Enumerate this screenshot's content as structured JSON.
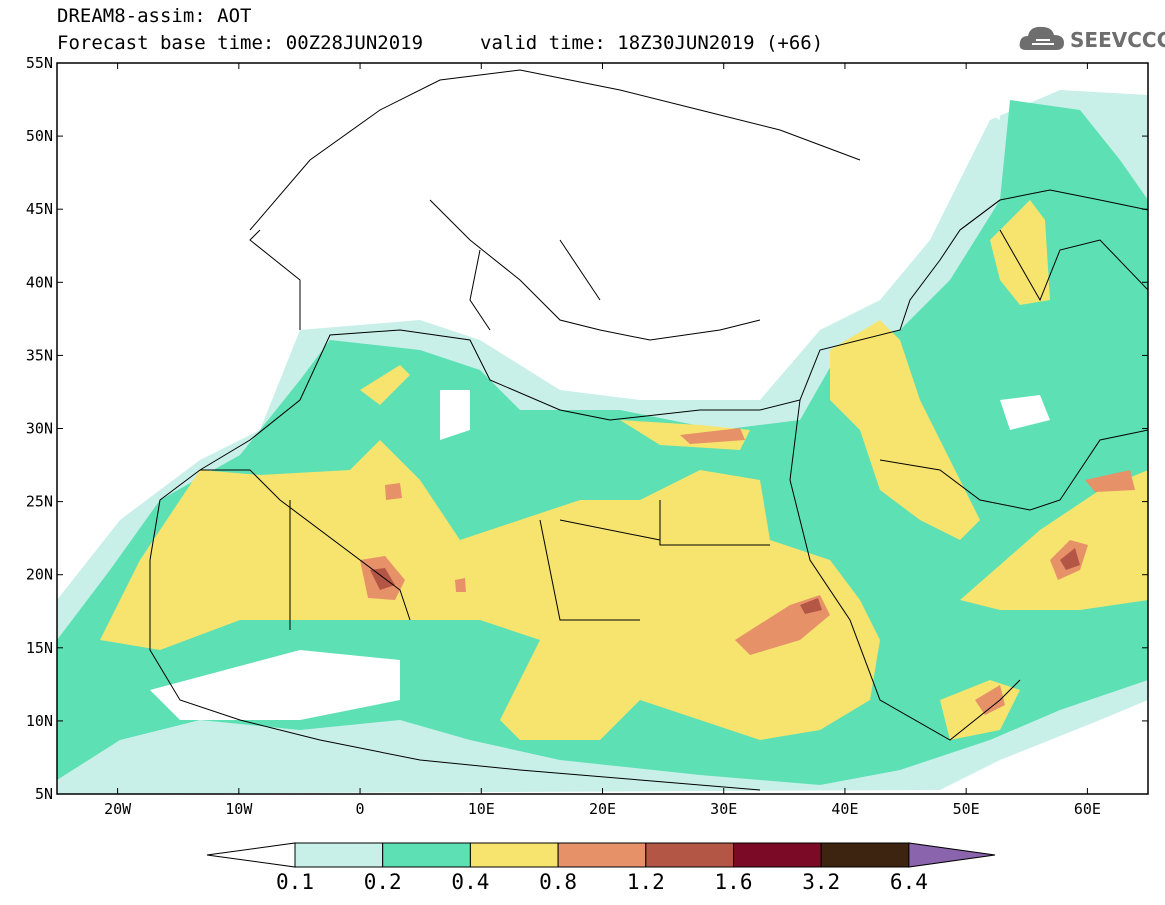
{
  "header": {
    "title": "DREAM8-assim: AOT",
    "base_time": "Forecast base time: 00Z28JUN2019",
    "valid_time": "valid time: 18Z30JUN2019 (+66)"
  },
  "logo": {
    "text": "SEEVCCC",
    "icon": "cloud-icon"
  },
  "axes": {
    "lat_labels": [
      "55N",
      "50N",
      "45N",
      "40N",
      "35N",
      "30N",
      "25N",
      "20N",
      "15N",
      "10N",
      "5N"
    ],
    "lon_labels": [
      "20W",
      "10W",
      "0",
      "10E",
      "20E",
      "30E",
      "40E",
      "50E",
      "60E"
    ]
  },
  "legend": {
    "labels": [
      "0.1",
      "0.2",
      "0.4",
      "0.8",
      "1.2",
      "1.6",
      "3.2",
      "6.4"
    ],
    "colors": [
      "#c8f0e8",
      "#5ce0b4",
      "#f6e46e",
      "#e69168",
      "#b45646",
      "#7b0a26",
      "#3c2410",
      "#8a64ac"
    ]
  },
  "palette": {
    "ocean": "#ffffff",
    "land_outline": "#000000"
  }
}
